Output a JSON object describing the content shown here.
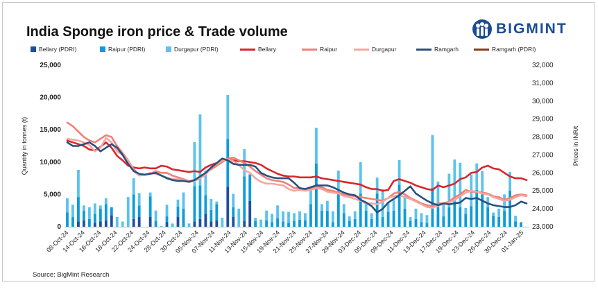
{
  "header": {
    "title": "India Sponge iron price & Trade volume",
    "brand": "BIGMINT"
  },
  "source": "Source: BigMint Research",
  "chart_data": {
    "type": "bar+line",
    "title": "India Sponge iron price & Trade volume",
    "ylabel_left": "Quantity in tonnes (t)",
    "ylabel_right": "Prices in INR/t",
    "ylim_left": [
      0,
      25000
    ],
    "ylim_right": [
      23000,
      32000
    ],
    "yticks_left": [
      "0",
      "5,000",
      "10,000",
      "15,000",
      "20,000",
      "25,000"
    ],
    "yticks_right": [
      "23,000",
      "24,000",
      "25,000",
      "26,000",
      "27,000",
      "28,000",
      "29,000",
      "30,000",
      "31,000",
      "32,000"
    ],
    "x_tick_labels": [
      "08-Oct-24",
      "14-Oct-24",
      "16-Oct-24",
      "18-Oct-24",
      "22-Oct-24",
      "24-Oct-24",
      "28-Oct-24",
      "30-Oct-24",
      "05-Nov-24",
      "07-Nov-24",
      "11-Nov-24",
      "13-Nov-24",
      "15-Nov-24",
      "19-Nov-24",
      "21-Nov-24",
      "25-Nov-24",
      "27-Nov-24",
      "29-Nov-24",
      "03-Dec-24",
      "05-Dec-24",
      "09-Dec-24",
      "11-Dec-24",
      "13-Dec-24",
      "17-Dec-24",
      "19-Dec-24",
      "23-Dec-24",
      "26-Dec-24",
      "30-Dec-24",
      "01-Jan-25"
    ],
    "legend": [
      {
        "name": "Bellary (PDRI)",
        "kind": "bar",
        "color": "#1f4e9c"
      },
      {
        "name": "Raipur (PDRI)",
        "kind": "bar",
        "color": "#0e9bd8"
      },
      {
        "name": "Durgapur (PDRI)",
        "kind": "bar",
        "color": "#5bc3ec"
      },
      {
        "name": "Bellary",
        "kind": "line",
        "color": "#d9262b"
      },
      {
        "name": "Raipur",
        "kind": "line",
        "color": "#ef8078"
      },
      {
        "name": "Durgapur",
        "kind": "line",
        "color": "#f3a6a0"
      },
      {
        "name": "Ramgarh",
        "kind": "line",
        "color": "#27507f"
      },
      {
        "name": "Ramgarh (PDRI)",
        "kind": "line",
        "color": "#8b3a12"
      }
    ],
    "bar_series": [
      {
        "name": "Bellary (PDRI)",
        "color": "#1f4e9c",
        "values": [
          0,
          0,
          800,
          1000,
          0,
          600,
          800,
          1000,
          1800,
          0,
          0,
          0,
          1200,
          1500,
          0,
          1500,
          0,
          0,
          700,
          0,
          1500,
          0,
          0,
          800,
          1200,
          2000,
          800,
          1000,
          0,
          6200,
          1500,
          0,
          900,
          4000,
          0,
          0,
          0,
          0,
          0,
          0,
          0,
          0,
          0,
          0,
          0,
          0,
          0,
          0,
          0,
          0,
          0,
          0,
          0,
          0,
          0,
          0,
          0,
          0,
          0,
          0,
          0,
          0,
          0,
          0,
          0,
          0,
          0,
          0,
          0,
          0,
          0,
          0,
          0,
          0,
          0,
          0,
          0,
          0,
          0,
          0,
          0,
          0,
          0
        ]
      },
      {
        "name": "Raipur (PDRI)",
        "color": "#0e9bd8",
        "values": [
          2200,
          1500,
          3800,
          1500,
          1200,
          1400,
          2000,
          2500,
          1200,
          0,
          0,
          0,
          3800,
          1800,
          0,
          3200,
          900,
          0,
          900,
          0,
          1600,
          2800,
          0,
          5500,
          5200,
          2900,
          1800,
          2500,
          0,
          7400,
          1500,
          0,
          6900,
          4100,
          900,
          0,
          1000,
          700,
          1300,
          800,
          600,
          900,
          1100,
          1000,
          3500,
          9800,
          2500,
          2500,
          700,
          5200,
          2100,
          900,
          1200,
          5100,
          2500,
          1200,
          5100,
          1500,
          2300,
          2500,
          6500,
          2800,
          900,
          1200,
          700,
          600,
          6000,
          3000,
          1600,
          3000,
          3900,
          3000,
          2000,
          3200,
          5700,
          5000,
          3000,
          1700,
          1500,
          2500,
          5600,
          800,
          700
        ]
      },
      {
        "name": "Durgapur (PDRI)",
        "color": "#5bc3ec",
        "values": [
          2200,
          1900,
          4200,
          800,
          1800,
          1600,
          500,
          900,
          0,
          1500,
          800,
          4600,
          2500,
          1900,
          0,
          600,
          1600,
          100,
          1800,
          500,
          1100,
          2500,
          500,
          6800,
          11000,
          3800,
          1700,
          400,
          1400,
          6800,
          2100,
          2800,
          4200,
          0,
          500,
          1100,
          1500,
          1300,
          2000,
          1600,
          1700,
          1200,
          1300,
          1100,
          2500,
          5500,
          1000,
          1500,
          1700,
          3500,
          1400,
          700,
          1200,
          4900,
          1000,
          900,
          2500,
          4300,
          1500,
          1600,
          3800,
          2000,
          600,
          1600,
          1400,
          1200,
          8200,
          4000,
          1800,
          5200,
          6500,
          6900,
          900,
          4900,
          4100,
          3600,
          1600,
          500,
          1300,
          2500,
          2900,
          900,
          0
        ]
      }
    ],
    "line_series": [
      {
        "name": "Bellary",
        "color": "#d9262b",
        "width": 2.6,
        "values": [
          27800,
          27700,
          27600,
          27500,
          27300,
          27250,
          27450,
          27700,
          27400,
          26950,
          26700,
          26400,
          26300,
          26250,
          26300,
          26250,
          26250,
          26400,
          26350,
          26200,
          26150,
          26100,
          26050,
          26100,
          26050,
          26300,
          26450,
          26550,
          26650,
          26750,
          26700,
          26650,
          26650,
          26600,
          26550,
          26450,
          26250,
          26100,
          25950,
          25850,
          25800,
          25800,
          25750,
          25750,
          25750,
          25800,
          25700,
          25650,
          25600,
          25550,
          25500,
          25450,
          25400,
          25350,
          25200,
          25100,
          25100,
          25000,
          25050,
          25550,
          25650,
          25550,
          25450,
          25300,
          25200,
          25100,
          25050,
          25300,
          25200,
          25300,
          25400,
          25650,
          25750,
          26000,
          26050,
          26300,
          26400,
          26250,
          26200,
          26000,
          25800,
          25700,
          25700,
          25600
        ]
      },
      {
        "name": "Raipur",
        "color": "#ef8078",
        "width": 2.6,
        "values": [
          28800,
          28600,
          28300,
          28000,
          27800,
          27700,
          27900,
          28100,
          28000,
          27500,
          27100,
          26700,
          26200,
          25900,
          25900,
          25950,
          26100,
          26000,
          26000,
          25850,
          25750,
          25650,
          25550,
          25600,
          25700,
          26000,
          26200,
          26400,
          26600,
          26800,
          26850,
          26700,
          26550,
          26350,
          26100,
          25900,
          25700,
          25600,
          25550,
          25500,
          25350,
          25150,
          25150,
          25100,
          25150,
          25250,
          25200,
          25050,
          25000,
          24900,
          24800,
          24750,
          24700,
          24650,
          24600,
          24550,
          24500,
          24450,
          24600,
          24850,
          24950,
          24800,
          24600,
          24450,
          24300,
          24200,
          24150,
          24300,
          24300,
          24400,
          24650,
          24800,
          25050,
          24950,
          24950,
          24900,
          24850,
          24700,
          24650,
          24500,
          24600,
          24750,
          24800,
          24750
        ]
      },
      {
        "name": "Durgapur",
        "color": "#f3a6a0",
        "width": 2.6,
        "values": [
          27900,
          27850,
          27800,
          27700,
          27550,
          27200,
          27400,
          27950,
          27700,
          27200,
          27000,
          26700,
          26100,
          25850,
          25900,
          26000,
          25950,
          25850,
          25750,
          25650,
          25650,
          25600,
          25500,
          25550,
          25700,
          25900,
          26300,
          26500,
          26700,
          26750,
          26650,
          26450,
          26150,
          26000,
          25700,
          25500,
          25400,
          25400,
          25350,
          25300,
          25100,
          25000,
          25050,
          25000,
          25050,
          25150,
          25100,
          24950,
          24900,
          24850,
          24700,
          24650,
          24550,
          24450,
          24300,
          24300,
          24250,
          24400,
          24600,
          24700,
          24750,
          24650,
          24550,
          24400,
          24250,
          24100,
          24050,
          24200,
          24250,
          24350,
          24500,
          24700,
          24900,
          25000,
          24950,
          24850,
          24800,
          24650,
          24550,
          24450,
          24500,
          24650,
          24750,
          24700
        ]
      },
      {
        "name": "Ramgarh",
        "color": "#27507f",
        "width": 2.6,
        "values": [
          27700,
          27500,
          27500,
          27600,
          27700,
          27500,
          27200,
          27400,
          27600,
          27400,
          27000,
          26500,
          26100,
          25950,
          25900,
          25950,
          26000,
          25850,
          25700,
          25600,
          25550,
          25550,
          25500,
          25600,
          25800,
          26000,
          26300,
          26550,
          26800,
          26700,
          26500,
          26450,
          26450,
          26450,
          26350,
          26000,
          25850,
          25750,
          25700,
          25700,
          25700,
          25450,
          25150,
          25100,
          25200,
          25300,
          25300,
          25300,
          25200,
          25050,
          24900,
          24800,
          24750,
          24500,
          24350,
          24150,
          23800,
          24000,
          24350,
          24550,
          24750,
          25000,
          25250,
          24850,
          24650,
          24450,
          24300,
          24200,
          24300,
          24250,
          24300,
          24350,
          24600,
          24550,
          24600,
          24450,
          24300,
          24200,
          24150,
          24100,
          24100,
          24200,
          24400,
          24300
        ]
      },
      {
        "name": "Ramgarh (PDRI)",
        "color": "#8b3a12",
        "width": 2.2,
        "values": []
      }
    ]
  }
}
